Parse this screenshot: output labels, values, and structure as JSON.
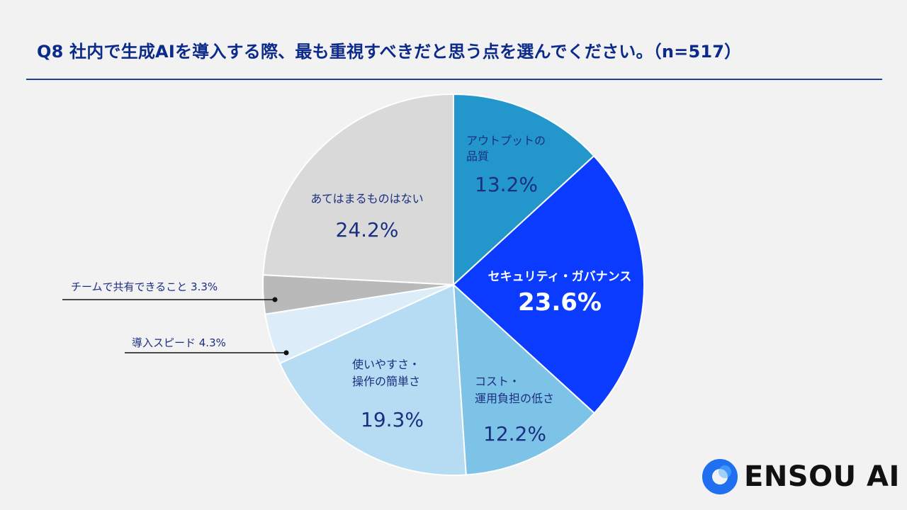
{
  "chart_data": {
    "type": "pie",
    "title": "Q8 社内で生成AIを導入する際、最も重視すべきだと思う点を選んでください。（n=517）",
    "unit": "%",
    "slices": [
      {
        "label": "アウトプットの品質",
        "label_lines": [
          "アウトプットの",
          "品質"
        ],
        "value": 13.2,
        "value_text": "13.2%",
        "color": "#2396cc",
        "text_color": "#1a2f80",
        "emphasis": false,
        "leader": false
      },
      {
        "label": "セキュリティ・ガバナンス",
        "label_lines": [
          "セキュリティ・ガバナンス"
        ],
        "value": 23.6,
        "value_text": "23.6%",
        "color": "#0a3bff",
        "text_color": "#ffffff",
        "emphasis": true,
        "leader": false
      },
      {
        "label": "コスト・運用負担の低さ",
        "label_lines": [
          "コスト・",
          "運用負担の低さ"
        ],
        "value": 12.2,
        "value_text": "12.2%",
        "color": "#7dc3e8",
        "text_color": "#1a2f80",
        "emphasis": false,
        "leader": false
      },
      {
        "label": "使いやすさ・操作の簡単さ",
        "label_lines": [
          "使いやすさ・",
          "操作の簡単さ"
        ],
        "value": 19.3,
        "value_text": "19.3%",
        "color": "#b5dcf2",
        "text_color": "#1a2f80",
        "emphasis": false,
        "leader": false
      },
      {
        "label": "導入スピード",
        "label_lines": [
          "導入スピード 4.3%"
        ],
        "value": 4.3,
        "value_text": "4.3%",
        "color": "#dcedf9",
        "text_color": "#1a2f80",
        "emphasis": false,
        "leader": true
      },
      {
        "label": "チームで共有できること",
        "label_lines": [
          "チームで共有できること 3.3%"
        ],
        "value": 3.3,
        "value_text": "3.3%",
        "color": "#b9b9b9",
        "text_color": "#1a2f80",
        "emphasis": false,
        "leader": true
      },
      {
        "label": "あてはまるものはない",
        "label_lines": [
          "あてはまるものはない"
        ],
        "value": 24.2,
        "value_text": "24.2%",
        "color": "#d9d9d9",
        "text_color": "#1a2f80",
        "emphasis": false,
        "leader": false
      }
    ]
  },
  "logo": {
    "text": "ENSOU AI",
    "color": "#1f6ff0"
  }
}
